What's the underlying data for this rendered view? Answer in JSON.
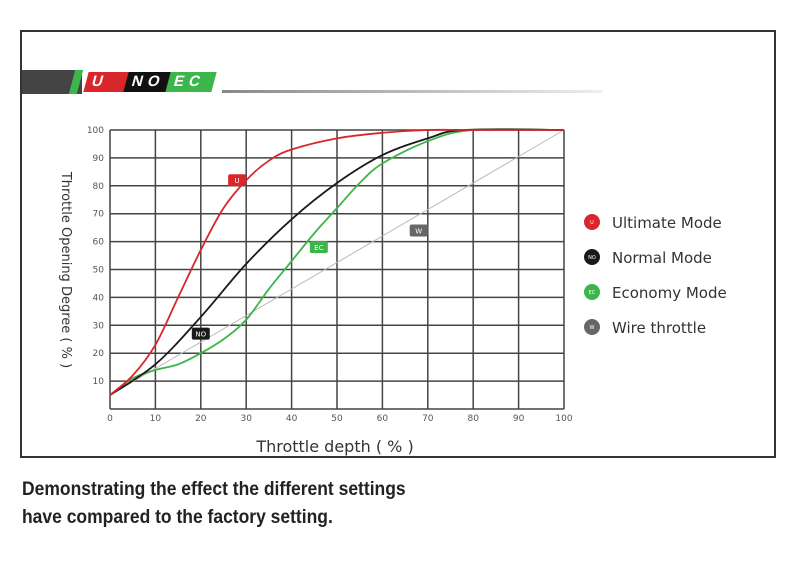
{
  "banner": {
    "u": "U",
    "no": "NO",
    "ec": "EC"
  },
  "caption": {
    "line1": "Demonstrating the effect the different settings",
    "line2": "have compared to the factory setting."
  },
  "chart_data": {
    "type": "line",
    "xlabel": "Throttle depth ( % )",
    "ylabel": "Throttle Opening Degree ( % )",
    "xlim": [
      0,
      100
    ],
    "ylim": [
      0,
      100
    ],
    "xticks": [
      0,
      10,
      20,
      30,
      40,
      50,
      60,
      70,
      80,
      90,
      100
    ],
    "yticks": [
      10,
      20,
      30,
      40,
      50,
      60,
      70,
      80,
      90,
      100
    ],
    "grid": true,
    "legend_position": "right",
    "series": [
      {
        "name": "Ultimate Mode",
        "badge": "U",
        "color": "#d9262b",
        "label_at": [
          28,
          82
        ],
        "x": [
          0,
          5,
          10,
          15,
          20,
          25,
          30,
          35,
          40,
          50,
          60,
          70,
          80,
          100
        ],
        "y": [
          5,
          12,
          23,
          40,
          57,
          72,
          82,
          89,
          93,
          97,
          99,
          100,
          100,
          100
        ]
      },
      {
        "name": "Normal Mode",
        "badge": "NO",
        "color": "#1a1a1a",
        "label_at": [
          20,
          27
        ],
        "x": [
          0,
          10,
          20,
          30,
          40,
          50,
          60,
          70,
          78,
          100
        ],
        "y": [
          5,
          16,
          33,
          52,
          68,
          81,
          91,
          97,
          100,
          100
        ]
      },
      {
        "name": "Economy Mode",
        "badge": "EC",
        "color": "#3cb54a",
        "label_at": [
          46,
          58
        ],
        "x": [
          0,
          5,
          10,
          15,
          20,
          25,
          30,
          35,
          40,
          45,
          50,
          55,
          60,
          70,
          80,
          100
        ],
        "y": [
          5,
          11,
          14,
          16,
          20,
          25,
          32,
          43,
          53,
          63,
          72,
          81,
          88,
          96,
          100,
          100
        ]
      },
      {
        "name": "Wire throttle",
        "badge": "W",
        "color": "#bbbbbb",
        "label_at": [
          68,
          64
        ],
        "x": [
          0,
          100
        ],
        "y": [
          5,
          100
        ]
      }
    ]
  }
}
